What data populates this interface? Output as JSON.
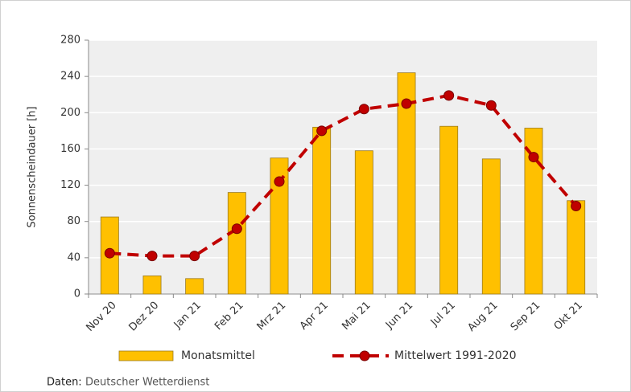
{
  "chart_data": {
    "type": "bar",
    "y_label": "Sonnenscheindauer [h]",
    "categories": [
      "Nov 20",
      "Dez 20",
      "Jan 21",
      "Feb 21",
      "Mrz 21",
      "Apr 21",
      "Mai 21",
      "Jun 21",
      "Jul 21",
      "Aug 21",
      "Sep 21",
      "Okt 21"
    ],
    "series": [
      {
        "name": "Monatsmittel",
        "type": "bar",
        "color": "#ffc000",
        "values": [
          85,
          20,
          17,
          112,
          150,
          184,
          158,
          244,
          185,
          149,
          183,
          103
        ]
      },
      {
        "name": "Mittelwert 1991-2020",
        "type": "line",
        "color": "#c00000",
        "values": [
          45,
          42,
          42,
          72,
          124,
          180,
          204,
          210,
          219,
          208,
          151,
          97
        ]
      }
    ],
    "ylim": [
      0,
      280
    ],
    "yticks": [
      0,
      40,
      80,
      120,
      160,
      200,
      240,
      280
    ],
    "grid": true,
    "legend": "bottom",
    "source_label": "Daten:",
    "source": "Deutscher Wetterdienst"
  }
}
